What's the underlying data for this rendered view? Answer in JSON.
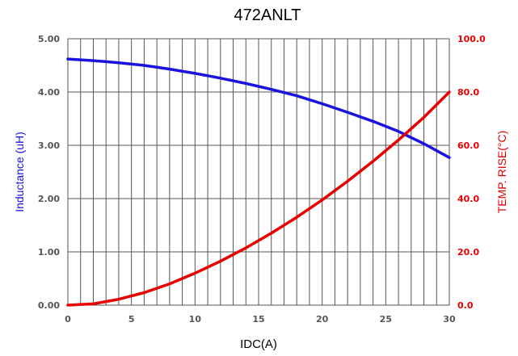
{
  "chart_data": {
    "type": "line",
    "title": "472ANLT",
    "xlabel": "IDC(A)",
    "ylabel": "Inductance (uH)",
    "y2label": "TEMP. RISE(°C)",
    "xlim": [
      0,
      30
    ],
    "ylim": [
      0,
      5
    ],
    "y2lim": [
      0,
      100
    ],
    "grid": true,
    "x_ticks": [
      0,
      5,
      10,
      15,
      20,
      25,
      30
    ],
    "x_tick_labels": [
      "0",
      "5",
      "10",
      "15",
      "20",
      "25",
      "30"
    ],
    "y_ticks": [
      0,
      1,
      2,
      3,
      4,
      5
    ],
    "y_tick_labels": [
      "0.00",
      "1.00",
      "2.00",
      "3.00",
      "4.00",
      "5.00"
    ],
    "y2_ticks": [
      0,
      20,
      40,
      60,
      80,
      100
    ],
    "y2_tick_labels": [
      "0.0",
      "20.0",
      "40.0",
      "60.0",
      "80.0",
      "100.0"
    ],
    "series": [
      {
        "axis": "left",
        "color": "#1a12e0",
        "x": [
          0,
          2,
          4,
          6,
          8,
          10,
          12,
          14,
          16,
          18,
          20,
          22,
          24,
          26,
          28,
          30
        ],
        "values": [
          4.62,
          4.59,
          4.55,
          4.5,
          4.43,
          4.35,
          4.26,
          4.16,
          4.05,
          3.93,
          3.78,
          3.62,
          3.45,
          3.26,
          3.03,
          2.77
        ]
      },
      {
        "axis": "right",
        "color": "#e60000",
        "x": [
          0,
          2,
          4,
          6,
          8,
          10,
          12,
          14,
          16,
          18,
          20,
          22,
          24,
          26,
          28,
          30
        ],
        "values": [
          0,
          0.5,
          2.2,
          4.7,
          8,
          12,
          16.5,
          21.5,
          27,
          33,
          39.5,
          46.5,
          54,
          62,
          70.5,
          80
        ]
      }
    ],
    "colors": {
      "left_axis_label": "#1a12e0",
      "right_axis_label": "#e60000",
      "left_ticks": "#555555",
      "right_ticks": "#e60000",
      "grid": "#555555"
    }
  }
}
